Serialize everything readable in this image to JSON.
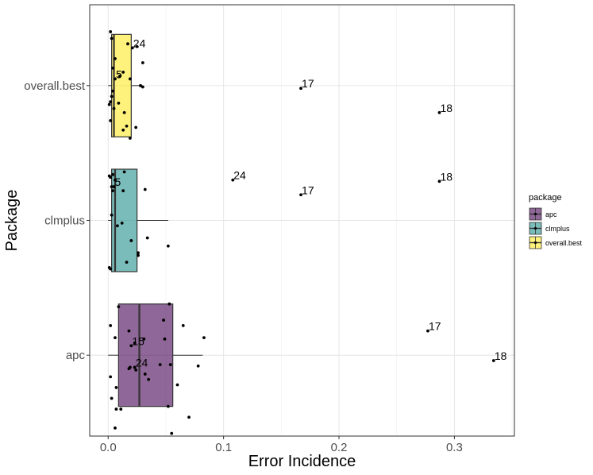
{
  "chart_data": {
    "type": "boxplot",
    "xlabel": "Error Incidence",
    "ylabel": "Package",
    "xlim": [
      -0.016,
      0.352
    ],
    "x_ticks": [
      0.0,
      0.1,
      0.2,
      0.3
    ],
    "x_tick_labels": [
      "0.0",
      "0.1",
      "0.2",
      "0.3"
    ],
    "categories": [
      "apc",
      "clmplus",
      "overall.best"
    ],
    "grid": true,
    "legend": {
      "title": "package",
      "position": "right",
      "entries": [
        "apc",
        "clmplus",
        "overall.best"
      ]
    },
    "series": [
      {
        "name": "apc",
        "color": "#440154",
        "box": {
          "q1": 0.009,
          "median": 0.027,
          "q3": 0.056,
          "whisker_low": 0.0,
          "whisker_high": 0.082
        },
        "points": [
          {
            "x": 0.002,
            "dy": -0.22
          },
          {
            "x": 0.009,
            "dy": -0.36
          },
          {
            "x": 0.018,
            "dy": -0.18
          },
          {
            "x": 0.031,
            "dy": -0.12
          },
          {
            "x": 0.048,
            "dy": -0.26
          },
          {
            "x": 0.053,
            "dy": -0.38
          },
          {
            "x": 0.065,
            "dy": -0.22
          },
          {
            "x": 0.083,
            "dy": -0.13
          },
          {
            "x": 0.006,
            "dy": -0.13
          },
          {
            "x": 0.002,
            "dy": 0.16
          },
          {
            "x": 0.007,
            "dy": 0.24
          },
          {
            "x": 0.019,
            "dy": 0.09
          },
          {
            "x": 0.024,
            "dy": 0.11
          },
          {
            "x": 0.032,
            "dy": 0.14
          },
          {
            "x": 0.003,
            "dy": 0.32
          },
          {
            "x": 0.007,
            "dy": 0.4
          },
          {
            "x": 0.011,
            "dy": 0.4
          },
          {
            "x": 0.006,
            "dy": 0.54
          },
          {
            "x": 0.018,
            "dy": 0.1
          },
          {
            "x": 0.035,
            "dy": 0.18
          },
          {
            "x": 0.052,
            "dy": 0.38
          },
          {
            "x": 0.06,
            "dy": 0.22
          },
          {
            "x": 0.07,
            "dy": 0.46
          },
          {
            "x": 0.078,
            "dy": 0.08
          },
          {
            "x": 0.049,
            "dy": -0.12
          },
          {
            "x": 0.054,
            "dy": 0.07
          },
          {
            "x": 0.023,
            "dy": -0.09
          },
          {
            "x": 0.055,
            "dy": 0.58
          },
          {
            "x": 0.045,
            "dy": 0.07
          }
        ],
        "labeled_points": [
          {
            "label": "15",
            "x": 0.02,
            "dy": -0.07
          },
          {
            "label": "24",
            "x": 0.023,
            "dy": 0.09
          },
          {
            "label": "17",
            "x": 0.277,
            "dy": -0.18
          },
          {
            "label": "18",
            "x": 0.334,
            "dy": 0.04
          }
        ]
      },
      {
        "name": "clmplus",
        "color": "#21908C",
        "box": {
          "q1": 0.003,
          "median": 0.006,
          "q3": 0.025,
          "whisker_low": 0.0,
          "whisker_high": 0.052
        },
        "points": [
          {
            "x": 0.001,
            "dy": -0.33
          },
          {
            "x": 0.002,
            "dy": -0.32
          },
          {
            "x": 0.003,
            "dy": -0.25
          },
          {
            "x": 0.004,
            "dy": -0.22
          },
          {
            "x": 0.006,
            "dy": -0.3
          },
          {
            "x": 0.014,
            "dy": -0.36
          },
          {
            "x": 0.032,
            "dy": -0.23
          },
          {
            "x": 0.003,
            "dy": -0.04
          },
          {
            "x": 0.012,
            "dy": 0.02
          },
          {
            "x": 0.02,
            "dy": 0.15
          },
          {
            "x": 0.026,
            "dy": 0.24
          },
          {
            "x": 0.026,
            "dy": 0.26
          },
          {
            "x": 0.034,
            "dy": 0.13
          },
          {
            "x": 0.052,
            "dy": 0.19
          },
          {
            "x": 0.016,
            "dy": 0.31
          },
          {
            "x": 0.001,
            "dy": 0.35
          },
          {
            "x": 0.002,
            "dy": 0.36
          },
          {
            "x": 0.008,
            "dy": 0.04
          },
          {
            "x": 0.013,
            "dy": -0.22
          },
          {
            "x": 0.004,
            "dy": -0.34
          }
        ],
        "labeled_points": [
          {
            "label": "5",
            "x": 0.005,
            "dy": -0.25
          },
          {
            "label": "24",
            "x": 0.108,
            "dy": -0.3
          },
          {
            "label": "17",
            "x": 0.167,
            "dy": -0.19
          },
          {
            "label": "18",
            "x": 0.287,
            "dy": -0.29
          }
        ]
      },
      {
        "name": "overall.best",
        "color": "#FDE725",
        "box": {
          "q1": 0.003,
          "median": 0.005,
          "q3": 0.02,
          "whisker_low": 0.0,
          "whisker_high": 0.03
        },
        "points": [
          {
            "x": 0.002,
            "dy": -0.4
          },
          {
            "x": 0.003,
            "dy": -0.35
          },
          {
            "x": 0.017,
            "dy": -0.31
          },
          {
            "x": 0.03,
            "dy": -0.17
          },
          {
            "x": 0.025,
            "dy": -0.29
          },
          {
            "x": 0.013,
            "dy": -0.1
          },
          {
            "x": 0.006,
            "dy": -0.2
          },
          {
            "x": 0.004,
            "dy": -0.13
          },
          {
            "x": 0.019,
            "dy": -0.05
          },
          {
            "x": 0.01,
            "dy": -0.07
          },
          {
            "x": 0.028,
            "dy": 0.0
          },
          {
            "x": 0.03,
            "dy": 0.01
          },
          {
            "x": 0.004,
            "dy": 0.04
          },
          {
            "x": 0.001,
            "dy": 0.14
          },
          {
            "x": 0.002,
            "dy": 0.12
          },
          {
            "x": 0.005,
            "dy": 0.17
          },
          {
            "x": 0.003,
            "dy": 0.08
          },
          {
            "x": 0.009,
            "dy": 0.13
          },
          {
            "x": 0.014,
            "dy": 0.2
          },
          {
            "x": 0.016,
            "dy": 0.3
          },
          {
            "x": 0.013,
            "dy": 0.33
          },
          {
            "x": 0.019,
            "dy": 0.39
          },
          {
            "x": 0.002,
            "dy": 0.26
          },
          {
            "x": 0.024,
            "dy": 0.31
          }
        ],
        "labeled_points": [
          {
            "label": "24",
            "x": 0.021,
            "dy": -0.28
          },
          {
            "label": "5",
            "x": 0.006,
            "dy": -0.05
          },
          {
            "label": "17",
            "x": 0.167,
            "dy": 0.02
          },
          {
            "label": "18",
            "x": 0.287,
            "dy": 0.2
          }
        ]
      }
    ]
  }
}
